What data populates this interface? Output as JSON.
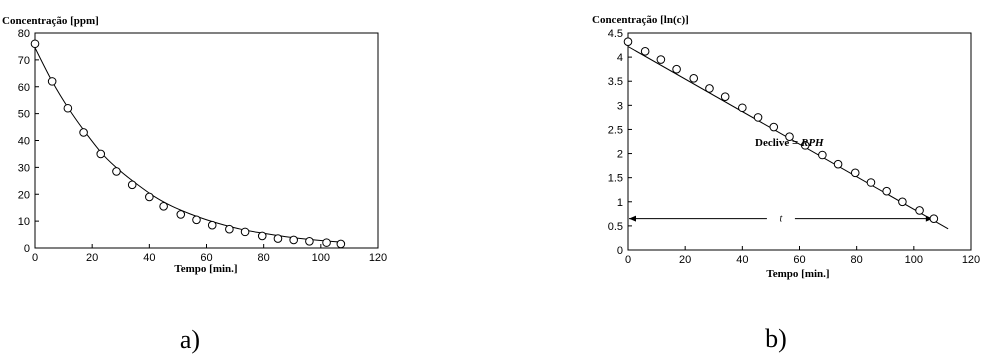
{
  "chart_data": [
    {
      "panel_label": "a)",
      "type": "scatter",
      "title": "Concentração [ppm]",
      "xlabel": "Tempo [min.]",
      "ylabel": "",
      "xlim": [
        0,
        120
      ],
      "ylim": [
        0,
        80
      ],
      "x_ticks": [
        0,
        20,
        40,
        60,
        80,
        100,
        120
      ],
      "y_ticks": [
        0,
        10,
        20,
        30,
        40,
        50,
        60,
        70,
        80
      ],
      "grid": false,
      "legend": "none",
      "points": {
        "x": [
          0,
          6,
          11.5,
          17,
          23,
          28.5,
          34,
          40,
          45,
          51,
          56.5,
          62,
          68,
          73.5,
          79.5,
          85,
          90.5,
          96,
          102,
          107
        ],
        "y": [
          76,
          62,
          52,
          43,
          35,
          28.5,
          23.5,
          19,
          15.5,
          12.5,
          10.5,
          8.5,
          7,
          6,
          4.5,
          3.5,
          3,
          2.5,
          2,
          1.5
        ]
      },
      "fit_curve": {
        "x": [
          0,
          6,
          12,
          18,
          24,
          30,
          36,
          42,
          48,
          54,
          60,
          66,
          72,
          78,
          84,
          90,
          96,
          102,
          107
        ],
        "y": [
          74.5,
          62,
          51.5,
          42.5,
          34.5,
          28.5,
          23.5,
          19,
          15.5,
          12.8,
          10.5,
          8.6,
          7,
          5.8,
          4.8,
          3.9,
          3.2,
          2.6,
          2.2
        ]
      }
    },
    {
      "panel_label": "b)",
      "type": "scatter",
      "title": "Concentração [ln(c)]",
      "xlabel": "Tempo [min.]",
      "ylabel": "",
      "xlim": [
        0,
        120
      ],
      "ylim": [
        0,
        4.5
      ],
      "x_ticks": [
        0,
        20,
        40,
        60,
        80,
        100,
        120
      ],
      "y_ticks": [
        0,
        0.5,
        1,
        1.5,
        2,
        2.5,
        3,
        3.5,
        4,
        4.5
      ],
      "grid": false,
      "legend": "none",
      "points": {
        "x": [
          0,
          6,
          11.5,
          17,
          23,
          28.5,
          34,
          40,
          45.5,
          51,
          56.5,
          62,
          68,
          73.5,
          79.5,
          85,
          90.5,
          96,
          102,
          107
        ],
        "y": [
          4.32,
          4.12,
          3.95,
          3.75,
          3.56,
          3.35,
          3.18,
          2.95,
          2.75,
          2.55,
          2.35,
          2.17,
          1.97,
          1.78,
          1.6,
          1.4,
          1.22,
          1.0,
          0.82,
          0.65
        ]
      },
      "fit_line": {
        "x": [
          0,
          112
        ],
        "y": [
          4.22,
          0.44
        ]
      },
      "annotations": {
        "slope_prefix": "Declive = ",
        "slope_value": "RPH",
        "interval_label": "t",
        "interval_x": [
          0,
          107
        ],
        "interval_y": 0.65
      }
    }
  ]
}
